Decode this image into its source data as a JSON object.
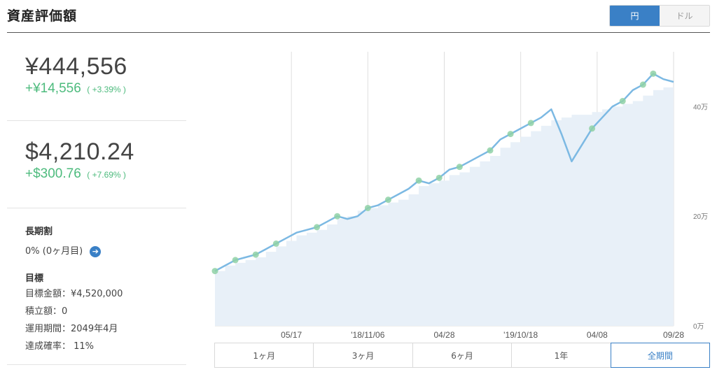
{
  "header": {
    "title": "資産評価額"
  },
  "currency_toggle": {
    "options": [
      "円",
      "ドル"
    ],
    "selected": "円"
  },
  "jpy": {
    "value": "¥444,556",
    "gain": "+¥14,556",
    "gain_pct": "( +3.39% )"
  },
  "usd": {
    "value": "$4,210.24",
    "gain": "+$300.76",
    "gain_pct": "( +7.69% )"
  },
  "long_term": {
    "heading": "長期割",
    "text": "0% (0ヶ月目)"
  },
  "goal": {
    "heading": "目標",
    "target_amount": "目標金額：¥4,520,000",
    "accumulation": "積立額：0",
    "period": "運用期間：2049年4月",
    "probability": "達成確率： 11%"
  },
  "range_tabs": {
    "tabs": [
      "1ヶ月",
      "3ヶ月",
      "6ヶ月",
      "1年",
      "全期間"
    ],
    "selected": "全期間"
  },
  "colors": {
    "accent": "#3a80c6",
    "gain": "#4dbb7d",
    "line": "#7cb9e3",
    "area": "#e8f0f8",
    "marker": "#8fd1a6"
  },
  "chart_data": {
    "type": "area",
    "x_tick_labels": [
      "05/17",
      "'18/11/06",
      "04/28",
      "'19/10/18",
      "04/08",
      "09/28"
    ],
    "y_tick_labels": [
      "0万",
      "20万",
      "40万"
    ],
    "ylim": [
      0,
      50
    ],
    "y_unit": "万",
    "grid": "vertical",
    "series": [
      {
        "kind": "line",
        "values": [
          10,
          11,
          12,
          12.5,
          13,
          14,
          15,
          16,
          17,
          17.5,
          18,
          19,
          20,
          19.5,
          20,
          21.5,
          22,
          23,
          24,
          25,
          26.5,
          26,
          27,
          28.5,
          29,
          30,
          31,
          32,
          34,
          35,
          36,
          37,
          38,
          39.5,
          35,
          30,
          33,
          36,
          38,
          40,
          41,
          43,
          44,
          46,
          45,
          44.5
        ]
      },
      {
        "kind": "area",
        "values": [
          10,
          11,
          11.5,
          12,
          12.5,
          13.5,
          14.5,
          15.5,
          16.5,
          17,
          17.5,
          18.5,
          19.5,
          20,
          21,
          21.5,
          22,
          22.5,
          23,
          24,
          25.5,
          26,
          26.5,
          27.5,
          28,
          29,
          30,
          31,
          32.5,
          33.5,
          34.5,
          35.5,
          36.5,
          37.5,
          38,
          38.5,
          38.5,
          39,
          39.5,
          40,
          40.5,
          41,
          42,
          43,
          43.5,
          44
        ]
      }
    ],
    "marker_index": [
      0,
      2,
      4,
      6,
      10,
      12,
      15,
      17,
      20,
      22,
      24,
      27,
      29,
      31,
      37,
      40,
      42,
      43
    ]
  }
}
